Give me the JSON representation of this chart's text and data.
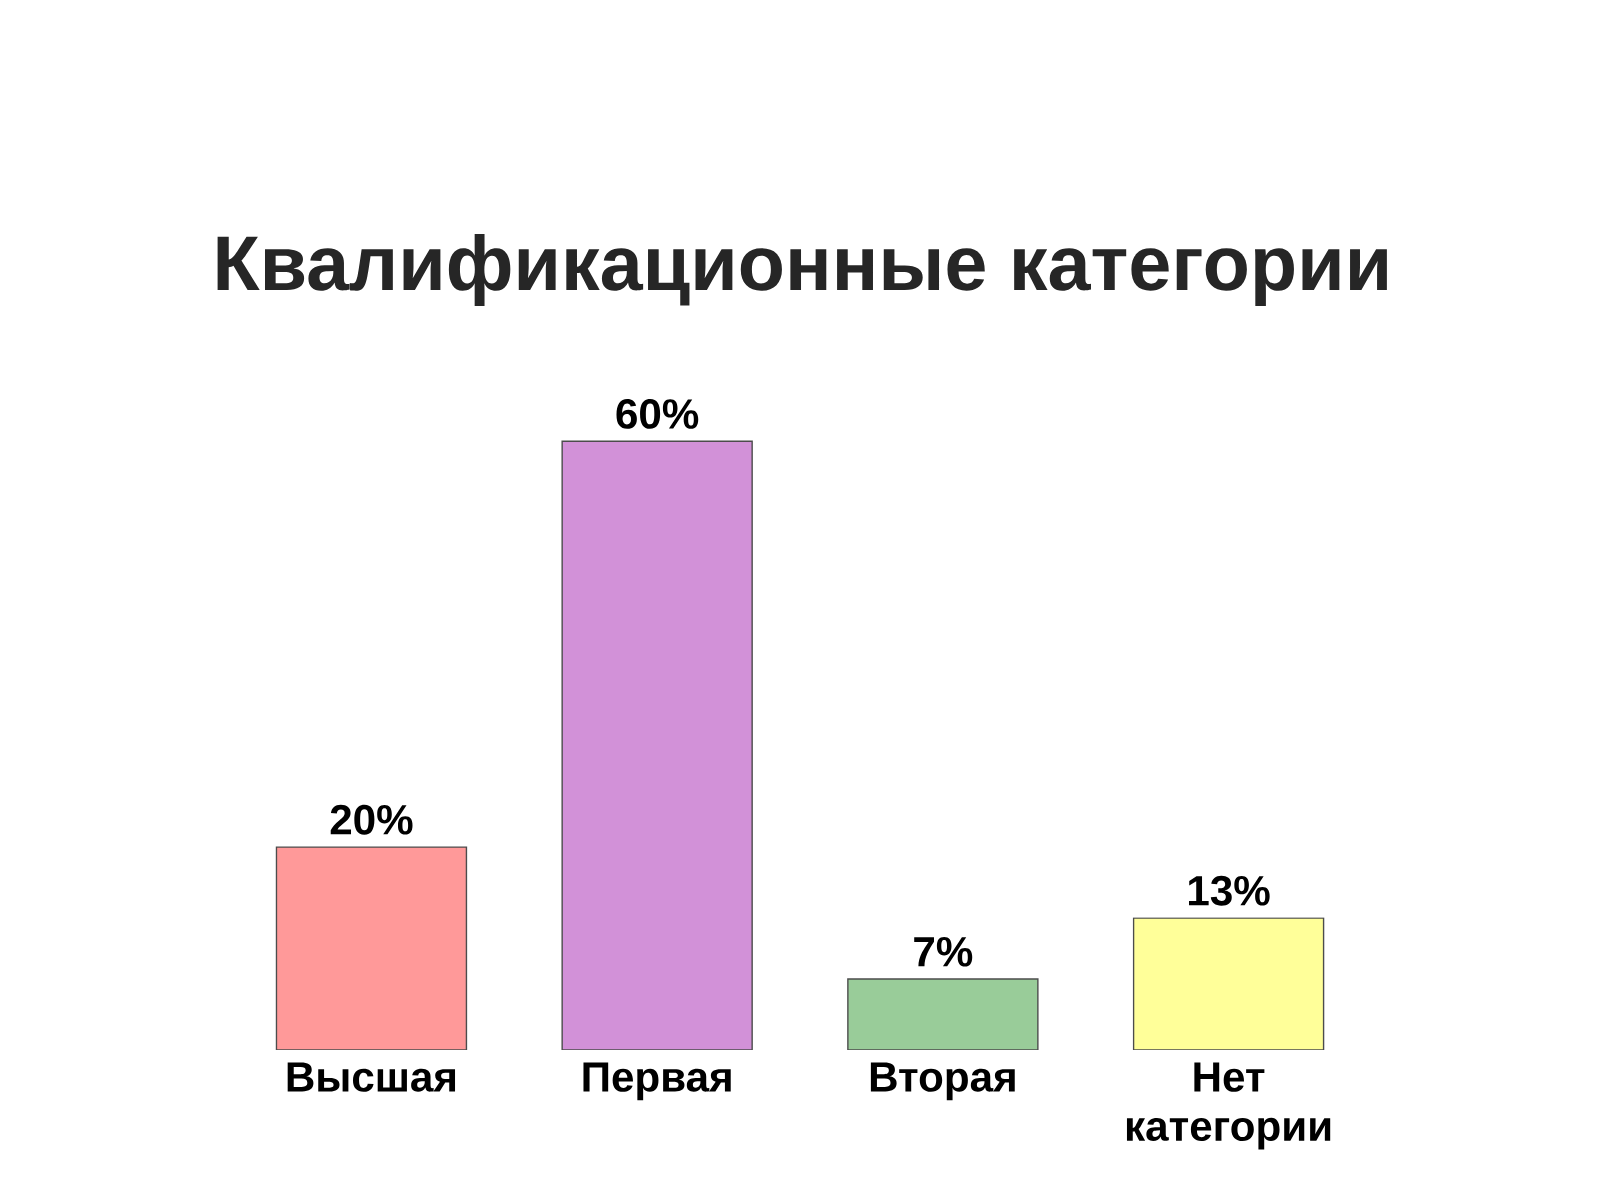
{
  "chart_data": {
    "type": "bar",
    "title": "Квалификационные категории",
    "categories": [
      "Высшая",
      "Первая",
      "Вторая",
      "Нет категории"
    ],
    "values": [
      20,
      60,
      7,
      13
    ],
    "value_labels": [
      "20%",
      "60%",
      "7%",
      "13%"
    ],
    "colors": [
      "#ff9999",
      "#d291d8",
      "#99cc99",
      "#ffff99"
    ]
  }
}
